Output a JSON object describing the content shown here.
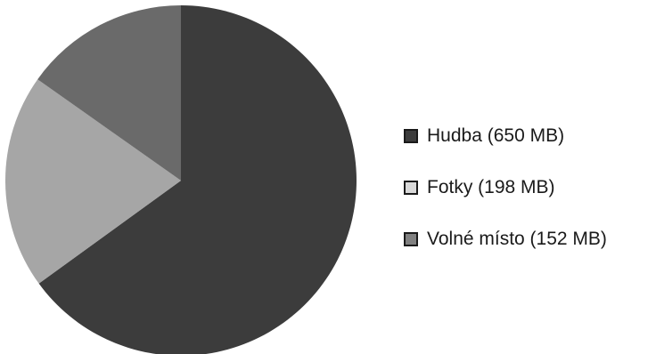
{
  "chart_data": {
    "type": "pie",
    "title": "",
    "categories": [
      "Hudba (650 MB)",
      "Fotky (198 MB)",
      "Volné místo (152 MB)"
    ],
    "values": [
      650,
      198,
      152
    ],
    "unit": "MB",
    "colors": [
      "#3c3c3c",
      "#a6a6a6",
      "#6a6a6a"
    ],
    "legend_swatch_colors": [
      "#3c3c3c",
      "#d9d9d9",
      "#808080"
    ],
    "start_angle_deg": 0,
    "direction": "clockwise",
    "legend_position": "right"
  }
}
